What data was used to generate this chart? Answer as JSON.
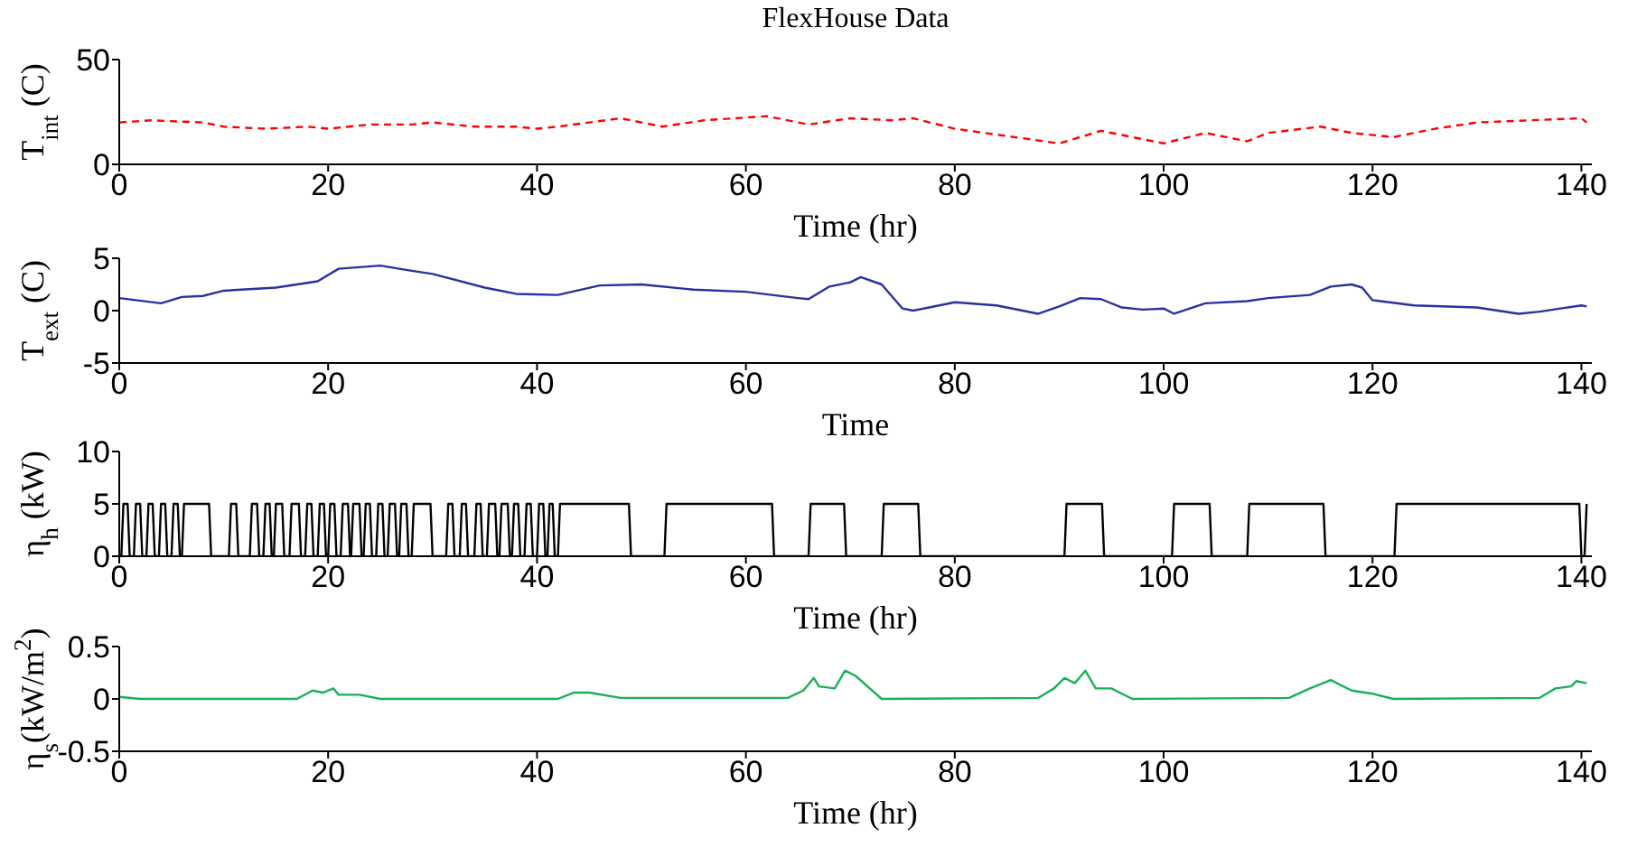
{
  "chart_data": [
    {
      "type": "line",
      "title": "FlexHouse Data",
      "xlabel": "Time (hr)",
      "ylabel": "T$_{int}$ (C)",
      "xlim": [
        0,
        141
      ],
      "xticks": [
        0,
        20,
        40,
        60,
        80,
        100,
        120,
        140
      ],
      "ylim": [
        0,
        50
      ],
      "yticks": [
        0,
        50
      ],
      "grid": false,
      "legend": false,
      "line_style": "dashed",
      "series": [
        {
          "color": "#ff0000",
          "x": [
            0,
            3,
            8,
            10,
            14,
            18,
            20,
            24,
            28,
            30,
            34,
            38,
            40,
            42,
            48,
            52,
            56,
            62,
            66,
            70,
            74,
            76,
            80,
            90,
            94,
            100,
            104,
            108,
            110,
            115,
            118,
            122,
            126,
            130,
            135,
            140,
            140.5
          ],
          "values": [
            20,
            21,
            20,
            18,
            17,
            18,
            17,
            19,
            19,
            20,
            18,
            18,
            17,
            18,
            22,
            18,
            21,
            23,
            19,
            22,
            21,
            22,
            17,
            10,
            16,
            10,
            15,
            11,
            15,
            18,
            15,
            13,
            17,
            20,
            21,
            22,
            20
          ]
        }
      ]
    },
    {
      "type": "line",
      "xlabel": "Time",
      "ylabel": "T$_{ext}$ (C)",
      "xlim": [
        0,
        141
      ],
      "xticks": [
        0,
        20,
        40,
        60,
        80,
        100,
        120,
        140
      ],
      "ylim": [
        -5,
        5
      ],
      "yticks": [
        -5,
        0,
        5
      ],
      "grid": false,
      "legend": false,
      "line_style": "solid",
      "series": [
        {
          "color": "#2b2fa0",
          "x": [
            0,
            4,
            6,
            8,
            10,
            15,
            19,
            21,
            25,
            28,
            30,
            35,
            38,
            42,
            46,
            50,
            55,
            60,
            65,
            66,
            68,
            70,
            71,
            73,
            75,
            76,
            80,
            84,
            88,
            90,
            92,
            94,
            96,
            98,
            100,
            101,
            104,
            108,
            110,
            114,
            116,
            118,
            119,
            120,
            124,
            130,
            134,
            136,
            138,
            140,
            140.5
          ],
          "values": [
            1.2,
            0.7,
            1.3,
            1.4,
            1.9,
            2.2,
            2.8,
            4.0,
            4.3,
            3.8,
            3.5,
            2.2,
            1.6,
            1.5,
            2.4,
            2.5,
            2.0,
            1.8,
            1.2,
            1.1,
            2.3,
            2.7,
            3.2,
            2.5,
            0.2,
            0,
            0.8,
            0.5,
            -0.3,
            0.4,
            1.2,
            1.1,
            0.3,
            0.1,
            0.2,
            -0.3,
            0.7,
            0.9,
            1.2,
            1.5,
            2.3,
            2.5,
            2.2,
            1.0,
            0.5,
            0.3,
            -0.3,
            -0.1,
            0.2,
            0.5,
            0.4
          ]
        }
      ]
    },
    {
      "type": "line",
      "xlabel": "Time (hr)",
      "ylabel": "η$_{h}$ (kW)",
      "xlim": [
        0,
        141
      ],
      "xticks": [
        0,
        20,
        40,
        60,
        80,
        100,
        120,
        140
      ],
      "ylim": [
        0,
        10
      ],
      "yticks": [
        0,
        5,
        10
      ],
      "grid": false,
      "legend": false,
      "line_style": "solid",
      "series": [
        {
          "color": "#000000",
          "x": [
            0,
            0.2,
            0.4,
            0.8,
            1,
            1.4,
            1.6,
            2,
            2.2,
            2.6,
            2.8,
            3.2,
            3.4,
            3.8,
            4,
            4.4,
            4.6,
            5,
            5.2,
            5.6,
            5.8,
            6,
            6.2,
            8.6,
            8.8,
            10.5,
            10.7,
            11.2,
            11.4,
            12.5,
            12.7,
            13.2,
            13.4,
            13.8,
            14,
            14.4,
            14.6,
            14.8,
            15,
            15.6,
            15.8,
            16.3,
            16.5,
            17.2,
            17.4,
            17.8,
            18,
            18.4,
            18.6,
            19,
            19.2,
            19.6,
            19.8,
            20,
            20.2,
            20.6,
            20.8,
            21.2,
            21.4,
            21.9,
            22.1,
            22.2,
            22.4,
            23,
            23.2,
            23.4,
            23.6,
            24,
            24.2,
            24.6,
            24.8,
            25.2,
            25.4,
            25.7,
            25.9,
            26.4,
            26.6,
            26.8,
            27,
            27.5,
            27.7,
            28,
            28.2,
            29.8,
            30,
            31.3,
            31.5,
            31.9,
            32.1,
            32.6,
            32.8,
            33.2,
            33.4,
            34,
            34.2,
            34.6,
            34.8,
            35.2,
            35.4,
            36,
            36.2,
            36.4,
            36.6,
            37.2,
            37.4,
            37.6,
            37.8,
            38.2,
            38.4,
            38.8,
            39,
            39.4,
            39.6,
            40,
            40.2,
            40.6,
            40.8,
            41,
            41.2,
            41.5,
            41.7,
            42,
            42.2,
            48.8,
            49,
            52.2,
            52.4,
            62.5,
            62.7,
            66,
            66.2,
            69.4,
            69.6,
            73,
            73.2,
            76.5,
            76.7,
            90.5,
            90.7,
            94.1,
            94.3,
            100.8,
            101,
            104.4,
            104.6,
            108,
            108.2,
            115.3,
            115.5,
            122.1,
            122.3,
            139.8,
            140,
            140.3,
            140.5
          ],
          "values": [
            0,
            0,
            5,
            5,
            0,
            0,
            5,
            5,
            0,
            0,
            5,
            5,
            0,
            0,
            5,
            5,
            0,
            0,
            5,
            5,
            0,
            0,
            5,
            5,
            0,
            0,
            5,
            5,
            0,
            0,
            5,
            5,
            0,
            0,
            5,
            5,
            0,
            0,
            5,
            5,
            0,
            0,
            5,
            5,
            0,
            0,
            5,
            5,
            0,
            0,
            5,
            5,
            0,
            0,
            5,
            5,
            0,
            0,
            5,
            5,
            0,
            0,
            5,
            5,
            0,
            0,
            5,
            5,
            0,
            0,
            5,
            5,
            0,
            0,
            5,
            5,
            0,
            0,
            5,
            5,
            0,
            0,
            5,
            5,
            0,
            0,
            5,
            5,
            0,
            0,
            5,
            5,
            0,
            0,
            5,
            5,
            0,
            0,
            5,
            5,
            0,
            0,
            5,
            5,
            0,
            0,
            5,
            5,
            0,
            0,
            5,
            5,
            0,
            0,
            5,
            5,
            0,
            0,
            5,
            5,
            0,
            0,
            5,
            5,
            0,
            0,
            5,
            5,
            0,
            0,
            5,
            5,
            0,
            0,
            5,
            5,
            0,
            0,
            5,
            5,
            0,
            0,
            5,
            5,
            0,
            0,
            5,
            5,
            0,
            0,
            5,
            5,
            0,
            0,
            5
          ]
        }
      ]
    },
    {
      "type": "line",
      "xlabel": "Time (hr)",
      "ylabel": "η$_{s}$(kW/m$^{2}$)",
      "xlim": [
        0,
        141
      ],
      "xticks": [
        0,
        20,
        40,
        60,
        80,
        100,
        120,
        140
      ],
      "ylim": [
        -0.5,
        0.5
      ],
      "yticks": [
        -0.5,
        0,
        0.5
      ],
      "grid": false,
      "legend": false,
      "line_style": "solid",
      "series": [
        {
          "color": "#19b05a",
          "x": [
            0,
            2,
            17,
            18.5,
            19.5,
            20.5,
            21,
            23,
            25,
            42,
            43.5,
            45,
            48,
            64,
            65.5,
            66.5,
            67,
            68.5,
            69.5,
            70.5,
            73,
            88,
            89.5,
            90.5,
            91.5,
            92.5,
            93.5,
            95,
            97,
            112,
            114,
            116,
            118,
            120,
            122,
            136,
            137.5,
            139,
            139.5,
            140.5
          ],
          "values": [
            0.02,
            0,
            0,
            0.08,
            0.06,
            0.1,
            0.04,
            0.04,
            0,
            0,
            0.06,
            0.06,
            0.01,
            0.01,
            0.08,
            0.2,
            0.12,
            0.1,
            0.27,
            0.22,
            0,
            0.01,
            0.1,
            0.2,
            0.15,
            0.27,
            0.1,
            0.1,
            0,
            0.01,
            0.1,
            0.18,
            0.08,
            0.05,
            0,
            0.01,
            0.1,
            0.12,
            0.17,
            0.15
          ]
        }
      ]
    }
  ]
}
